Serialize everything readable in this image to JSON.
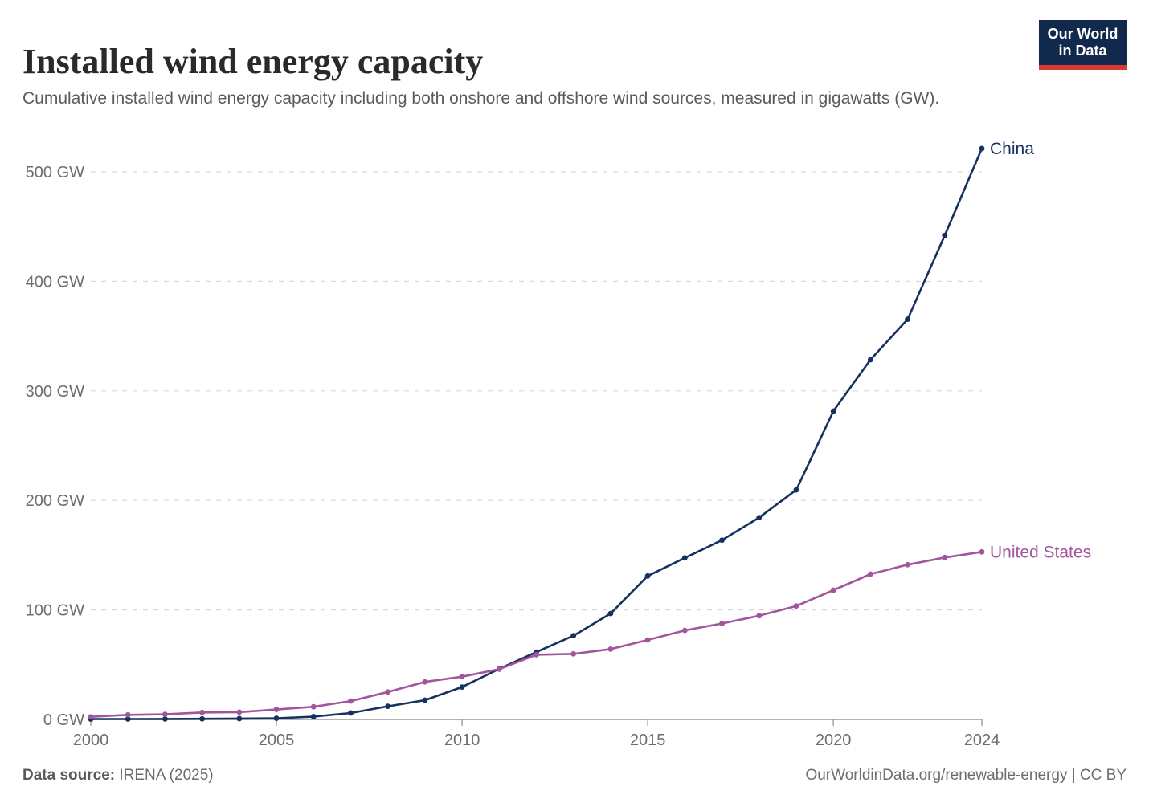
{
  "header": {
    "title": "Installed wind energy capacity",
    "subtitle": "Cumulative installed wind energy capacity including both onshore and offshore wind sources, measured in gigawatts (GW).",
    "logo": {
      "line1": "Our World",
      "line2": "in Data",
      "bg_color": "#12294e",
      "accent_color": "#d93a34",
      "text_color": "#ffffff"
    }
  },
  "chart_data": {
    "type": "line",
    "title": "Installed wind energy capacity",
    "xlabel": "",
    "ylabel": "GW",
    "xlim": [
      2000,
      2024
    ],
    "ylim": [
      0,
      500
    ],
    "grid": "horizontal-dashed",
    "legend_position": "end-of-line-labels",
    "x": [
      2000,
      2001,
      2002,
      2003,
      2004,
      2005,
      2006,
      2007,
      2008,
      2009,
      2010,
      2011,
      2012,
      2013,
      2014,
      2015,
      2016,
      2017,
      2018,
      2019,
      2020,
      2021,
      2022,
      2023,
      2024
    ],
    "series": [
      {
        "name": "China",
        "color": "#16315f",
        "values": [
          0.34,
          0.4,
          0.47,
          0.57,
          0.77,
          1.06,
          2.6,
          5.9,
          12.0,
          17.6,
          29.6,
          46.2,
          61.5,
          76.5,
          96.7,
          131.0,
          147.5,
          163.7,
          184.3,
          209.6,
          281.5,
          328.5,
          365.4,
          441.9,
          521.3
        ]
      },
      {
        "name": "United States",
        "color": "#a2559c",
        "values": [
          2.4,
          4.2,
          4.7,
          6.4,
          6.7,
          9.1,
          11.6,
          16.8,
          25.1,
          34.3,
          39.1,
          45.9,
          59.1,
          59.9,
          64.2,
          72.6,
          81.3,
          87.6,
          94.7,
          103.6,
          118.0,
          132.7,
          141.3,
          147.9,
          153.0
        ]
      }
    ],
    "xticks": [
      "2000",
      "2005",
      "2010",
      "2015",
      "2020",
      "2024"
    ],
    "yticks": [
      {
        "value": 0,
        "label": "0 GW"
      },
      {
        "value": 100,
        "label": "100 GW"
      },
      {
        "value": 200,
        "label": "200 GW"
      },
      {
        "value": 300,
        "label": "300 GW"
      },
      {
        "value": 400,
        "label": "400 GW"
      },
      {
        "value": 500,
        "label": "500 GW"
      }
    ],
    "colors": {
      "gridline": "#d9d9d9",
      "axis_line": "#9c9c9c",
      "tick_text": "#6d6d6d"
    }
  },
  "footer": {
    "source_label": "Data source:",
    "source_value": " IRENA (2025)",
    "url_text": "OurWorldinData.org/renewable-energy | CC BY"
  }
}
